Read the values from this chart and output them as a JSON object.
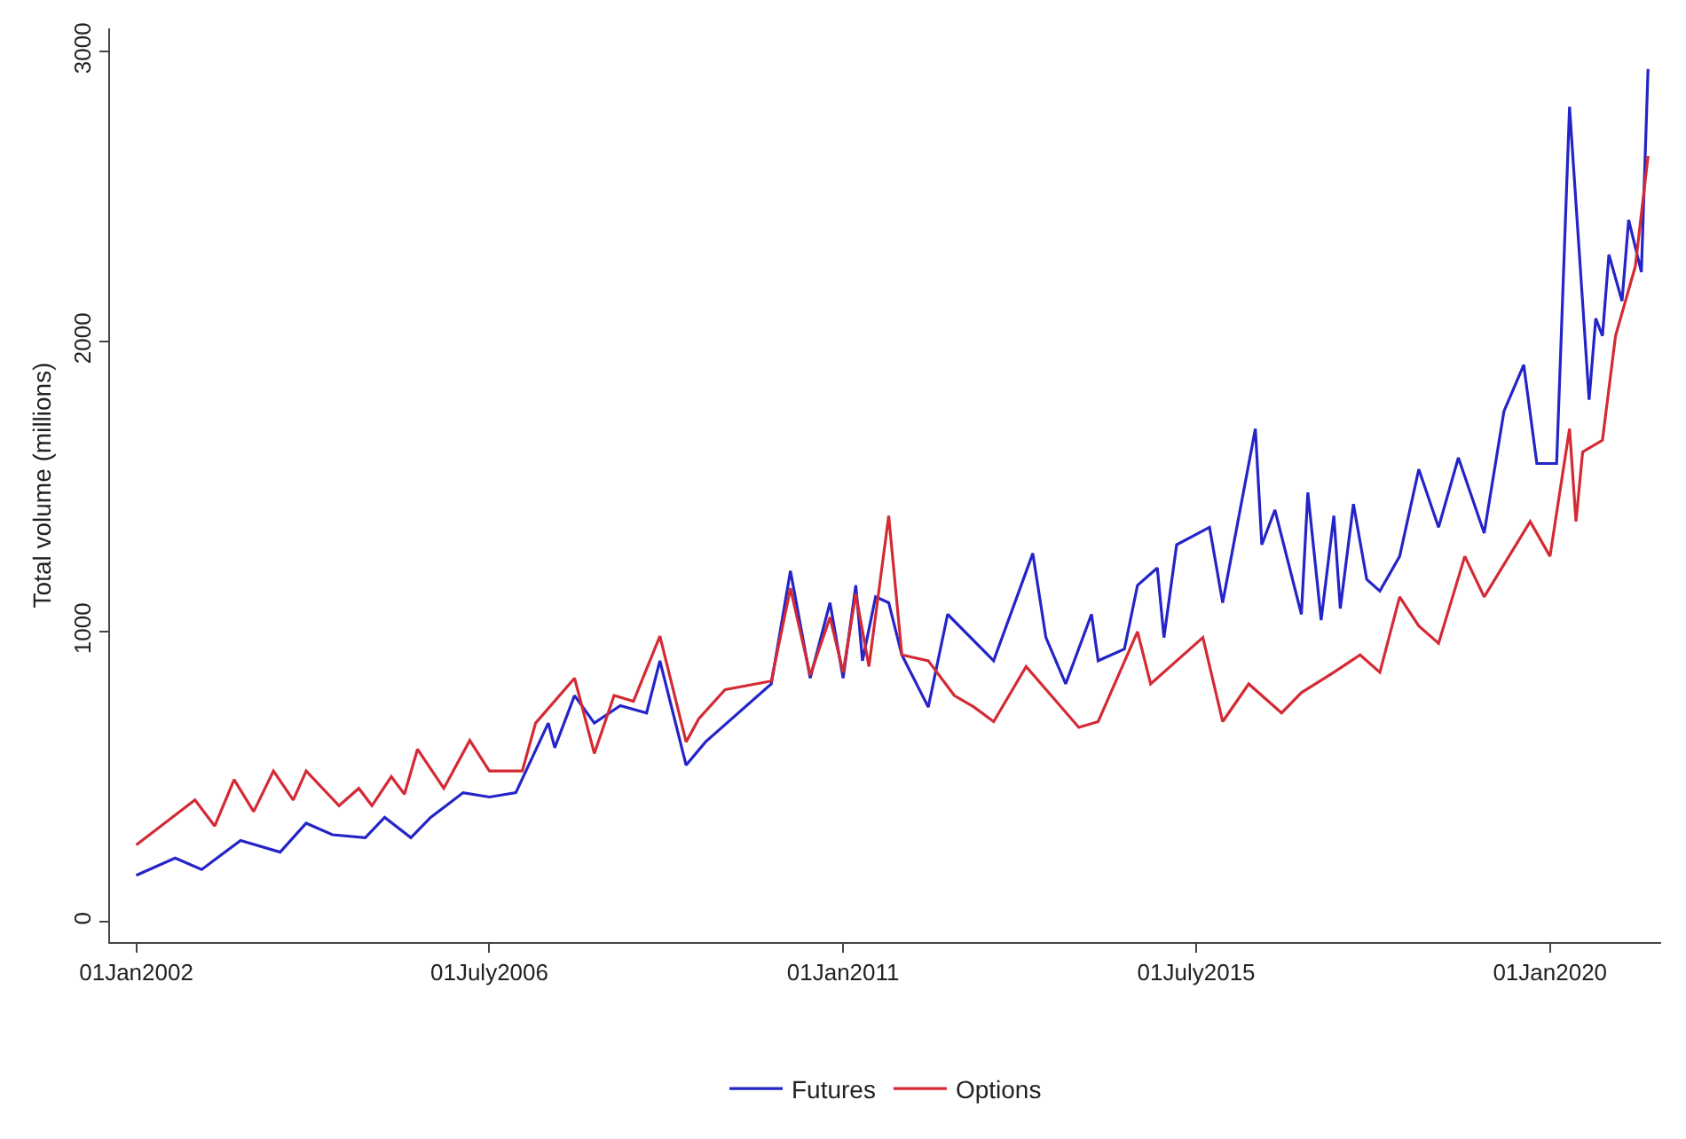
{
  "chart_data": {
    "type": "line",
    "ylabel": "Total volume (millions)",
    "xlim": [
      "2001-09",
      "2021-06"
    ],
    "xticks": [
      {
        "value": "2002-01-01",
        "label": "01Jan2002"
      },
      {
        "value": "2006-07-01",
        "label": "01July2006"
      },
      {
        "value": "2011-01-01",
        "label": "01Jan2011"
      },
      {
        "value": "2015-07-01",
        "label": "01July2015"
      },
      {
        "value": "2020-01-01",
        "label": "01Jan2020"
      }
    ],
    "ylim": [
      -70,
      3080
    ],
    "yticks": [
      0,
      1000,
      2000,
      3000
    ],
    "grid": false,
    "legend": "bottom",
    "marker": "none",
    "line_style": "solid",
    "series": [
      {
        "name": "Futures",
        "color": "#2424c8",
        "x": [
          "2002-01",
          "2002-07",
          "2002-11",
          "2003-05",
          "2003-11",
          "2004-03",
          "2004-07",
          "2004-12",
          "2005-03",
          "2005-07",
          "2005-10",
          "2006-03",
          "2006-07",
          "2006-11",
          "2007-04",
          "2007-05",
          "2007-08",
          "2007-11",
          "2008-03",
          "2008-07",
          "2008-09",
          "2009-01",
          "2009-04",
          "2010-02",
          "2010-05",
          "2010-08",
          "2010-11",
          "2011-01",
          "2011-03",
          "2011-04",
          "2011-06",
          "2011-08",
          "2011-10",
          "2012-02",
          "2012-05",
          "2012-12",
          "2013-06",
          "2013-08",
          "2013-11",
          "2014-03",
          "2014-04",
          "2014-08",
          "2014-10",
          "2015-01",
          "2015-02",
          "2015-04",
          "2015-09",
          "2015-11",
          "2016-04",
          "2016-05",
          "2016-07",
          "2016-11",
          "2016-12",
          "2017-02",
          "2017-04",
          "2017-05",
          "2017-07",
          "2017-09",
          "2017-11",
          "2018-02",
          "2018-05",
          "2018-08",
          "2018-11",
          "2019-03",
          "2019-06",
          "2019-09",
          "2019-11",
          "2020-02",
          "2020-04",
          "2020-07",
          "2020-08",
          "2020-09",
          "2020-10",
          "2020-12",
          "2021-01",
          "2021-03",
          "2021-04"
        ],
        "values": [
          160,
          220,
          180,
          280,
          240,
          340,
          300,
          290,
          360,
          290,
          360,
          445,
          430,
          445,
          685,
          600,
          780,
          685,
          745,
          720,
          900,
          540,
          620,
          820,
          1210,
          840,
          1100,
          840,
          1160,
          900,
          1120,
          1100,
          920,
          740,
          1060,
          900,
          1270,
          980,
          820,
          1060,
          900,
          940,
          1160,
          1220,
          980,
          1300,
          1360,
          1100,
          1700,
          1300,
          1420,
          1060,
          1480,
          1040,
          1400,
          1080,
          1440,
          1180,
          1140,
          1260,
          1560,
          1360,
          1600,
          1340,
          1760,
          1920,
          1580,
          1580,
          2810,
          1800,
          2080,
          2020,
          2300,
          2140,
          2420,
          2240,
          2940
        ]
      },
      {
        "name": "Options",
        "color": "#d42a34",
        "x": [
          "2002-01",
          "2002-10",
          "2003-01",
          "2003-04",
          "2003-07",
          "2003-10",
          "2004-01",
          "2004-03",
          "2004-08",
          "2004-11",
          "2005-01",
          "2005-04",
          "2005-06",
          "2005-08",
          "2005-12",
          "2006-04",
          "2006-07",
          "2006-12",
          "2007-02",
          "2007-08",
          "2007-11",
          "2008-02",
          "2008-05",
          "2008-09",
          "2009-01",
          "2009-03",
          "2009-07",
          "2010-02",
          "2010-05",
          "2010-08",
          "2010-11",
          "2011-01",
          "2011-03",
          "2011-05",
          "2011-08",
          "2011-10",
          "2012-02",
          "2012-06",
          "2012-09",
          "2012-12",
          "2013-05",
          "2014-01",
          "2014-04",
          "2014-10",
          "2014-12",
          "2015-08",
          "2015-11",
          "2016-03",
          "2016-08",
          "2016-11",
          "2017-04",
          "2017-08",
          "2017-11",
          "2018-02",
          "2018-05",
          "2018-08",
          "2018-12",
          "2019-03",
          "2019-10",
          "2020-01",
          "2020-04",
          "2020-05",
          "2020-06",
          "2020-09",
          "2020-11",
          "2021-02",
          "2021-04"
        ],
        "values": [
          265,
          420,
          330,
          490,
          380,
          520,
          420,
          520,
          400,
          460,
          400,
          500,
          440,
          595,
          460,
          625,
          520,
          520,
          685,
          840,
          580,
          780,
          760,
          985,
          620,
          700,
          800,
          830,
          1150,
          850,
          1050,
          860,
          1130,
          880,
          1400,
          920,
          900,
          780,
          740,
          690,
          880,
          670,
          690,
          1000,
          820,
          980,
          690,
          820,
          720,
          790,
          860,
          920,
          860,
          1120,
          1020,
          960,
          1260,
          1120,
          1380,
          1260,
          1700,
          1380,
          1620,
          1660,
          2020,
          2260,
          2640
        ]
      }
    ]
  }
}
